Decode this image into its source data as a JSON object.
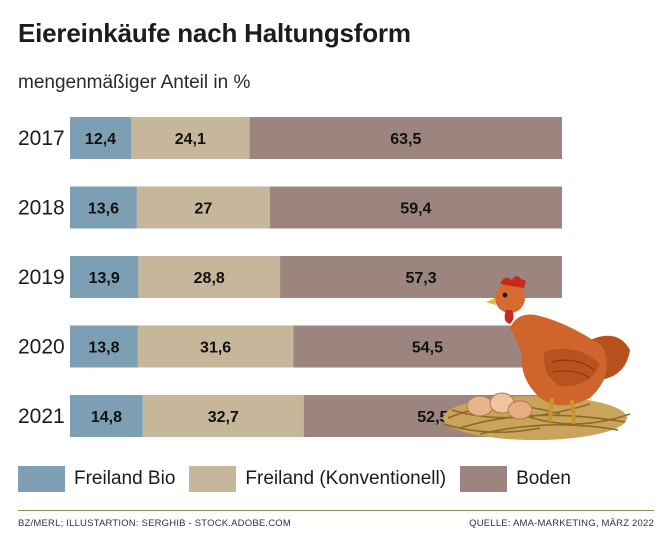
{
  "title": "Eiereinkäufe nach Haltungsform",
  "subtitle": "mengenmäßiger Anteil in %",
  "colors": {
    "freiland_bio": "#7d9fb4",
    "freiland_konv": "#c6b79b",
    "boden": "#9b857e"
  },
  "legend": [
    "Freiland Bio",
    "Freiland (Konventionell)",
    "Boden"
  ],
  "footer_left": "BZ/MERL; ILLUSTARTION: SERGHIB - STOCK.ADOBE.COM",
  "footer_right": "QUELLE: AMA-MARKETING, MÄRZ 2022",
  "illustration": "hen-on-nest-with-eggs",
  "chart_data": {
    "type": "bar",
    "orientation": "horizontal",
    "stacked": true,
    "categories": [
      "2017",
      "2018",
      "2019",
      "2020",
      "2021"
    ],
    "series": [
      {
        "name": "Freiland Bio",
        "values": [
          12.4,
          13.6,
          13.9,
          13.8,
          14.8
        ],
        "labels": [
          "12,4",
          "13,6",
          "13,9",
          "13,8",
          "14,8"
        ]
      },
      {
        "name": "Freiland (Konventionell)",
        "values": [
          24.1,
          27,
          28.8,
          31.6,
          32.7
        ],
        "labels": [
          "24,1",
          "27",
          "28,8",
          "31,6",
          "32,7"
        ]
      },
      {
        "name": "Boden",
        "values": [
          63.5,
          59.4,
          57.3,
          54.5,
          52.5
        ],
        "labels": [
          "63,5",
          "59,4",
          "57,3",
          "54,5",
          "52,5"
        ]
      }
    ],
    "xlim": [
      0,
      100
    ]
  }
}
